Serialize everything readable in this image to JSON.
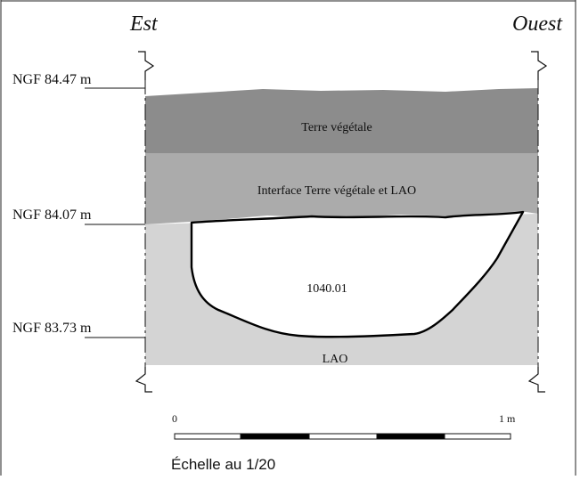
{
  "orientation": {
    "left": "Est",
    "right": "Ouest"
  },
  "elevations": [
    {
      "label": "NGF 84.47 m"
    },
    {
      "label": "NGF 84.07 m"
    },
    {
      "label": "NGF 83.73 m"
    }
  ],
  "layers": {
    "topsoil": {
      "label": "Terre végétale",
      "color": "#8c8c8c"
    },
    "interface": {
      "label": "Interface Terre végétale et LAO",
      "color": "#ababab"
    },
    "lao": {
      "label": "LAO",
      "color": "#d4d4d4"
    },
    "feature": {
      "label": "1040.01",
      "color": "#ffffff"
    }
  },
  "scale": {
    "start_label": "0",
    "end_label": "1 m",
    "caption": "Échelle au 1/20"
  }
}
